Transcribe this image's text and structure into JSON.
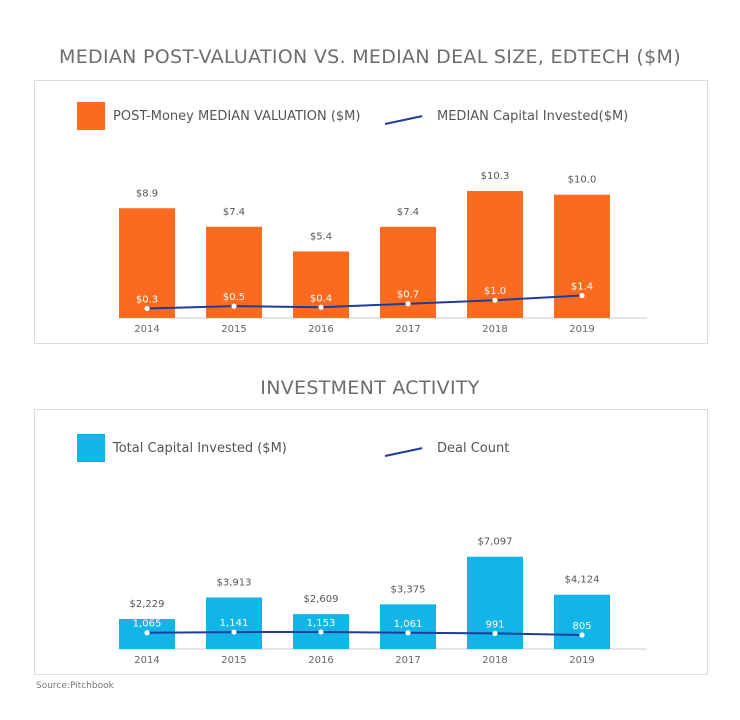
{
  "source": "Source:Pitchbook",
  "colors": {
    "orange": "#fa6b1f",
    "cyan": "#11b6e6",
    "line": "#1f3d99",
    "axis": "#c8c8c8"
  },
  "chart_data": [
    {
      "type": "bar",
      "title": "MEDIAN POST-VALUATION VS. MEDIAN DEAL SIZE, EDTECH ($M)",
      "categories": [
        "2014",
        "2015",
        "2016",
        "2017",
        "2018",
        "2019"
      ],
      "series": [
        {
          "name": "POST-Money MEDIAN VALUATION ($M)",
          "kind": "bar",
          "values": [
            8.9,
            7.4,
            5.4,
            7.4,
            10.3,
            10.0
          ],
          "labels": [
            "$8.9",
            "$7.4",
            "$5.4",
            "$7.4",
            "$10.3",
            "$10.0"
          ]
        },
        {
          "name": "MEDIAN Capital Invested($M)",
          "kind": "line",
          "values": [
            0.3,
            0.5,
            0.4,
            0.7,
            1.0,
            1.4
          ],
          "labels": [
            "$0.3",
            "$0.5",
            "$0.4",
            "$0.7",
            "$1.0",
            "$1.4"
          ]
        }
      ],
      "ylim": [
        0,
        10.3
      ]
    },
    {
      "type": "bar",
      "title": "INVESTMENT ACTIVITY",
      "categories": [
        "2014",
        "2015",
        "2016",
        "2017",
        "2018",
        "2019"
      ],
      "series": [
        {
          "name": "Total Capital Invested ($M)",
          "kind": "bar",
          "values": [
            2229,
            3913,
            2609,
            3375,
            7097,
            4124
          ],
          "labels": [
            "$2,229",
            "$3,913",
            "$2,609",
            "$3,375",
            "$7,097",
            "$4,124"
          ]
        },
        {
          "name": "Deal Count",
          "kind": "line",
          "values": [
            1065,
            1141,
            1153,
            1061,
            991,
            805
          ],
          "labels": [
            "1,065",
            "1,141",
            "1,153",
            "1,061",
            "991",
            "805"
          ]
        }
      ],
      "ylim": [
        0,
        7097
      ]
    }
  ]
}
